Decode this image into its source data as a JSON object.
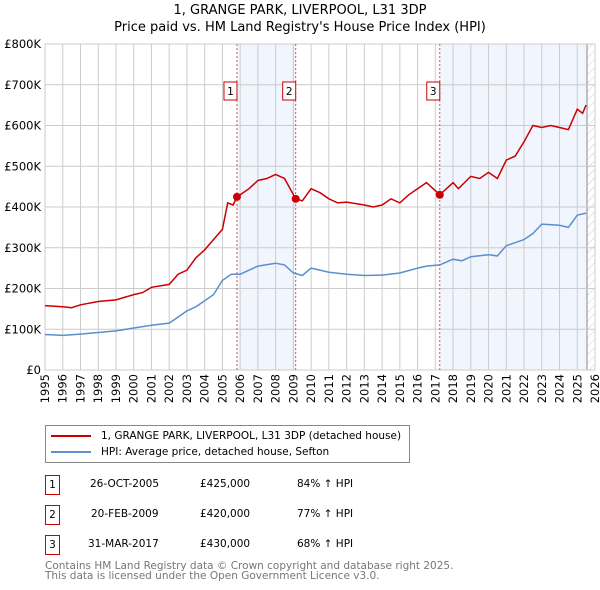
{
  "title": "1, GRANGE PARK, LIVERPOOL, L31 3DP",
  "subtitle": "Price paid vs. HM Land Registry's House Price Index (HPI)",
  "chart_data": {
    "type": "line",
    "title": "1, GRANGE PARK, LIVERPOOL, L31 3DP — Price paid vs. HM Land Registry's House Price Index (HPI)",
    "xlim": [
      1995,
      2026
    ],
    "ylim": [
      0,
      800000
    ],
    "x_ticks": [
      "1995",
      "1996",
      "1997",
      "1998",
      "1999",
      "2000",
      "2001",
      "2002",
      "2003",
      "2004",
      "2005",
      "2006",
      "2007",
      "2008",
      "2009",
      "2010",
      "2011",
      "2012",
      "2013",
      "2014",
      "2015",
      "2016",
      "2017",
      "2018",
      "2019",
      "2020",
      "2021",
      "2022",
      "2023",
      "2024",
      "2025",
      "2026"
    ],
    "y_ticks": [
      {
        "v": 0,
        "label": "£0"
      },
      {
        "v": 100000,
        "label": "£100K"
      },
      {
        "v": 200000,
        "label": "£200K"
      },
      {
        "v": 300000,
        "label": "£300K"
      },
      {
        "v": 400000,
        "label": "£400K"
      },
      {
        "v": 500000,
        "label": "£500K"
      },
      {
        "v": 600000,
        "label": "£600K"
      },
      {
        "v": 700000,
        "label": "£700K"
      },
      {
        "v": 800000,
        "label": "£800K"
      }
    ],
    "grid": true,
    "shaded_ranges": [
      [
        2005.82,
        2009.13
      ],
      [
        2017.25,
        2025.55
      ]
    ],
    "hatched_from": 2025.55,
    "series": [
      {
        "name": "1, GRANGE PARK, LIVERPOOL, L31 3DP (detached house)",
        "color": "#cc0000",
        "x": [
          1995,
          1996,
          1996.5,
          1997,
          1998,
          1999,
          2000,
          2000.5,
          2001,
          2002,
          2002.5,
          2003,
          2003.5,
          2004,
          2004.5,
          2005,
          2005.3,
          2005.6,
          2005.82,
          2006,
          2006.5,
          2007,
          2007.5,
          2008,
          2008.5,
          2009.13,
          2009.5,
          2010,
          2010.5,
          2011,
          2011.5,
          2012,
          2013,
          2013.5,
          2014,
          2014.5,
          2015,
          2015.5,
          2016,
          2016.5,
          2017.25,
          2018,
          2018.3,
          2019,
          2019.5,
          2020,
          2020.5,
          2021,
          2021.5,
          2022,
          2022.5,
          2023,
          2023.5,
          2024,
          2024.5,
          2025,
          2025.3,
          2025.5
        ],
        "y": [
          158000,
          155000,
          153000,
          160000,
          168000,
          172000,
          185000,
          190000,
          203000,
          210000,
          235000,
          245000,
          275000,
          295000,
          320000,
          345000,
          410000,
          405000,
          425000,
          430000,
          445000,
          465000,
          470000,
          480000,
          470000,
          420000,
          415000,
          445000,
          435000,
          420000,
          410000,
          412000,
          405000,
          400000,
          405000,
          420000,
          410000,
          430000,
          445000,
          460000,
          430000,
          460000,
          445000,
          475000,
          470000,
          485000,
          470000,
          515000,
          525000,
          560000,
          600000,
          595000,
          600000,
          595000,
          590000,
          640000,
          630000,
          650000
        ]
      },
      {
        "name": "HPI: Average price, detached house, Sefton",
        "color": "#5b8fd0",
        "x": [
          1995,
          1996,
          1997,
          1998,
          1999,
          2000,
          2001,
          2002,
          2002.5,
          2003,
          2003.5,
          2004,
          2004.5,
          2005,
          2005.5,
          2006,
          2007,
          2008,
          2008.5,
          2009,
          2009.5,
          2010,
          2011,
          2012,
          2013,
          2014,
          2015,
          2016,
          2016.5,
          2017.25,
          2018,
          2018.5,
          2019,
          2020,
          2020.5,
          2021,
          2022,
          2022.5,
          2023,
          2024,
          2024.5,
          2025,
          2025.5
        ],
        "y": [
          87000,
          85000,
          88000,
          92000,
          96000,
          103000,
          110000,
          115000,
          130000,
          145000,
          155000,
          170000,
          185000,
          220000,
          235000,
          235000,
          255000,
          262000,
          258000,
          238000,
          232000,
          250000,
          240000,
          235000,
          232000,
          233000,
          238000,
          250000,
          255000,
          258000,
          272000,
          268000,
          278000,
          283000,
          280000,
          305000,
          320000,
          335000,
          358000,
          355000,
          350000,
          380000,
          385000
        ]
      }
    ],
    "sales": [
      {
        "marker": "1",
        "x": 2005.82,
        "y": 425000
      },
      {
        "marker": "2",
        "x": 2009.13,
        "y": 420000
      },
      {
        "marker": "3",
        "x": 2017.25,
        "y": 430000
      }
    ]
  },
  "legend": {
    "property": "1, GRANGE PARK, LIVERPOOL, L31 3DP (detached house)",
    "hpi": "HPI: Average price, detached house, Sefton"
  },
  "table": [
    {
      "marker": "1",
      "date": "26-OCT-2005",
      "price": "£425,000",
      "hpi": "84% ↑ HPI"
    },
    {
      "marker": "2",
      "date": "20-FEB-2009",
      "price": "£420,000",
      "hpi": "77% ↑ HPI"
    },
    {
      "marker": "3",
      "date": "31-MAR-2017",
      "price": "£430,000",
      "hpi": "68% ↑ HPI"
    }
  ],
  "footer": {
    "line1": "Contains HM Land Registry data © Crown copyright and database right 2025.",
    "line2": "This data is licensed under the Open Government Licence v3.0."
  }
}
